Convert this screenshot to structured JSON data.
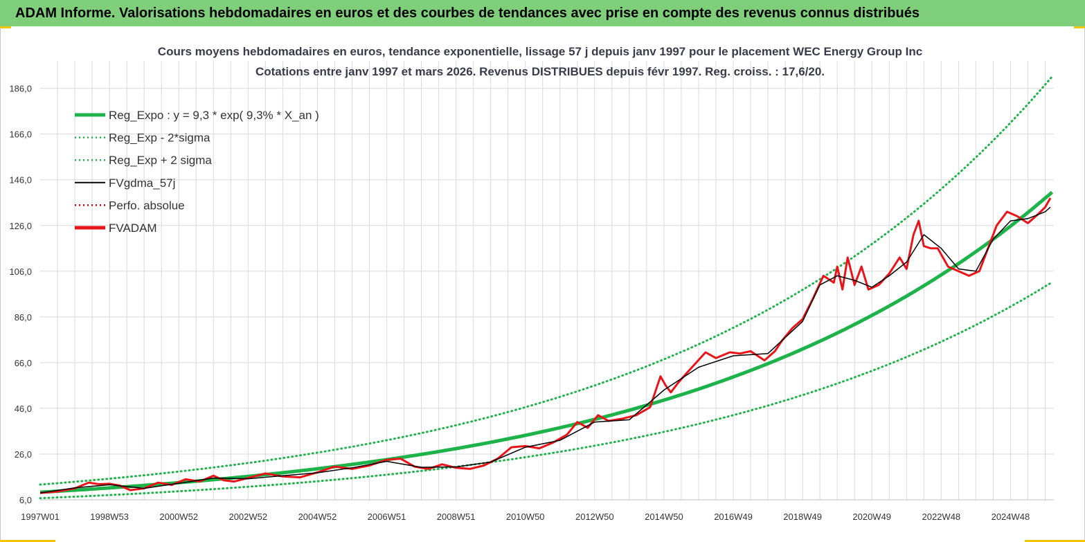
{
  "header": {
    "title": "ADAM Informe. Valorisations hebdomadaires en euros et des courbes de tendances avec prise en compte des revenus connus distribués"
  },
  "colors": {
    "banner": "#7fcf7a",
    "accent": "#f5c400",
    "trend": "#1db34a",
    "smooth": "#000000",
    "perf": "#c00000",
    "fvadam": "#e8141a",
    "grid": "#d9d9d9",
    "title_text": "#3a3a4a"
  },
  "chart_data": {
    "type": "line",
    "title": "Cours moyens hebdomadaires en euros, tendance exponentielle, lissage 57 j depuis janv 1997 pour le placement WEC Energy Group Inc",
    "subtitle": "Cotations entre janv 1997 et mars 2026. Revenus DISTRIBUES depuis févr 1997. Reg. croiss. : 17,6/20.",
    "xlabel": "",
    "ylabel": "",
    "ylim": [
      6,
      198
    ],
    "xlim": [
      1997.0,
      2026.25
    ],
    "y_ticks": [
      "6,0",
      "26,0",
      "46,0",
      "66,0",
      "86,0",
      "106,0",
      "126,0",
      "146,0",
      "166,0",
      "186,0"
    ],
    "y_tick_values": [
      6,
      26,
      46,
      66,
      86,
      106,
      126,
      146,
      166,
      186
    ],
    "x_tick_labels": [
      "1997W01",
      "1998W53",
      "2000W52",
      "2002W52",
      "2004W52",
      "2006W51",
      "2008W51",
      "2010W50",
      "2012W50",
      "2014W50",
      "2016W49",
      "2018W49",
      "2020W49",
      "2022W48",
      "2024W48"
    ],
    "x_tick_years": [
      1997.0,
      1999.0,
      2001.0,
      2003.0,
      2005.0,
      2007.0,
      2009.0,
      2011.0,
      2013.0,
      2015.0,
      2017.0,
      2019.0,
      2021.0,
      2023.0,
      2025.0
    ],
    "legend_position": "top-left",
    "legend": [
      {
        "label": "Reg_Expo : y = 9,3 * exp( 9,3% *  X_an )",
        "style": "solid-thick",
        "color": "#1db34a"
      },
      {
        "label": "Reg_Exp - 2*sigma",
        "style": "dotted",
        "color": "#1db34a"
      },
      {
        "label": "Reg_Exp + 2 sigma",
        "style": "dotted",
        "color": "#1db34a"
      },
      {
        "label": "FVgdma_57j",
        "style": "solid-thin",
        "color": "#000000"
      },
      {
        "label": "Perfo. absolue",
        "style": "dotted",
        "color": "#c00000"
      },
      {
        "label": "FVADAM",
        "style": "solid-thick",
        "color": "#e8141a"
      }
    ],
    "regression": {
      "a": 9.3,
      "b": 0.093,
      "x0": 1997.0,
      "minus_2sigma_factor": 0.72,
      "plus_2sigma_factor": 1.36
    },
    "series": [
      {
        "name": "FVADAM",
        "x": [
          1997.0,
          1997.5,
          1998.0,
          1998.4,
          1998.7,
          1999.0,
          1999.3,
          1999.6,
          2000.0,
          2000.4,
          2000.8,
          2001.2,
          2001.6,
          2002.0,
          2002.3,
          2002.6,
          2003.0,
          2003.5,
          2004.0,
          2004.5,
          2005.0,
          2005.5,
          2006.0,
          2006.5,
          2007.0,
          2007.4,
          2007.8,
          2008.2,
          2008.6,
          2009.0,
          2009.4,
          2009.8,
          2010.2,
          2010.6,
          2011.0,
          2011.4,
          2011.8,
          2012.2,
          2012.5,
          2012.8,
          2013.1,
          2013.4,
          2013.8,
          2014.2,
          2014.6,
          2014.9,
          2015.05,
          2015.2,
          2015.4,
          2015.6,
          2015.9,
          2016.2,
          2016.5,
          2016.9,
          2017.2,
          2017.5,
          2017.9,
          2018.2,
          2018.4,
          2018.7,
          2019.0,
          2019.3,
          2019.6,
          2019.9,
          2020.0,
          2020.15,
          2020.3,
          2020.5,
          2020.7,
          2020.9,
          2021.2,
          2021.5,
          2021.8,
          2022.0,
          2022.2,
          2022.35,
          2022.5,
          2022.7,
          2022.9,
          2023.2,
          2023.5,
          2023.8,
          2024.1,
          2024.4,
          2024.6,
          2024.9,
          2025.2,
          2025.5,
          2025.8,
          2026.0,
          2026.15
        ],
        "values": [
          9.0,
          9.6,
          11.0,
          13.5,
          12.8,
          13.0,
          12.2,
          10.2,
          11.0,
          13.5,
          12.5,
          15.0,
          14.0,
          16.5,
          14.5,
          14.0,
          15.5,
          17.5,
          16.2,
          15.8,
          18.0,
          20.5,
          19.5,
          21.0,
          23.5,
          24.0,
          20.5,
          19.5,
          21.5,
          20.0,
          19.5,
          21.0,
          24.0,
          29.0,
          29.5,
          28.5,
          31.0,
          34.5,
          40.0,
          37.5,
          43.0,
          40.5,
          41.5,
          43.0,
          46.5,
          60.0,
          56.0,
          53.0,
          57.0,
          60.5,
          65.5,
          70.5,
          68.0,
          70.5,
          70.0,
          71.0,
          67.0,
          71.0,
          75.5,
          81.0,
          85.0,
          94.0,
          104.0,
          101.0,
          108.0,
          98.0,
          112.0,
          100.0,
          108.0,
          98.0,
          100.0,
          105.0,
          112.0,
          107.0,
          122.0,
          128.0,
          117.0,
          116.0,
          116.0,
          108.0,
          106.0,
          104.0,
          106.0,
          118.0,
          126.0,
          132.0,
          130.0,
          127.0,
          131.0,
          134.0,
          138.0
        ]
      },
      {
        "name": "FVgdma_57j",
        "x": [
          1997.0,
          1998.0,
          1999.0,
          2000.0,
          2001.0,
          2002.0,
          2003.0,
          2004.0,
          2005.0,
          2006.0,
          2007.0,
          2008.0,
          2009.0,
          2010.0,
          2011.0,
          2012.0,
          2013.0,
          2014.0,
          2015.0,
          2016.0,
          2017.0,
          2018.0,
          2019.0,
          2019.5,
          2020.0,
          2020.5,
          2021.0,
          2021.5,
          2022.0,
          2022.5,
          2023.0,
          2023.5,
          2024.0,
          2024.5,
          2025.0,
          2025.5,
          2026.0,
          2026.15
        ],
        "values": [
          9.0,
          11.2,
          12.6,
          11.0,
          13.2,
          15.5,
          15.2,
          16.5,
          17.8,
          20.0,
          22.8,
          20.2,
          20.4,
          22.5,
          29.0,
          32.0,
          40.0,
          41.0,
          54.0,
          64.0,
          69.0,
          70.0,
          84.0,
          100.0,
          104.0,
          102.0,
          99.0,
          104.0,
          110.0,
          122.0,
          116.0,
          107.0,
          106.0,
          120.0,
          128.0,
          129.0,
          132.0,
          134.0
        ]
      }
    ]
  }
}
